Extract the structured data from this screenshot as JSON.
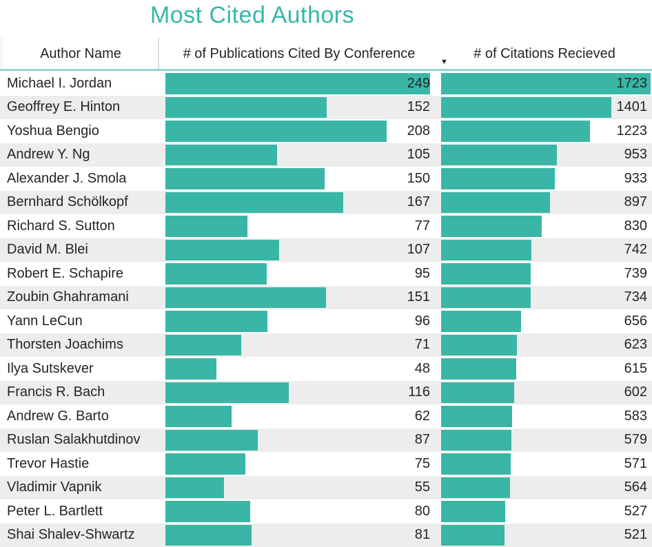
{
  "title": "Most Cited Authors",
  "header": {
    "columns": [
      "Author Name",
      "# of Publications Cited By Conference",
      "# of Citations Recieved"
    ],
    "sort_icon": "▼",
    "sorted_column": "# of Citations Recieved",
    "sort_direction": "descending"
  },
  "colors": {
    "accent": "#3ab6a7",
    "title": "#35b7a8",
    "alt_row": "#ededed",
    "text": "#252423",
    "header_underline": "#93d6ce"
  },
  "chart_data": {
    "type": "table",
    "title": "Most Cited Authors",
    "columns": [
      "Author Name",
      "# of Publications Cited By Conference",
      "# of Citations Recieved"
    ],
    "sort": {
      "column": "# of Citations Recieved",
      "direction": "descending"
    },
    "bar_style": "data-bars",
    "bar_max": {
      "publications": 249,
      "citations": 1723
    },
    "rows": [
      {
        "author": "Michael I. Jordan",
        "publications": 249,
        "citations": 1723
      },
      {
        "author": "Geoffrey E. Hinton",
        "publications": 152,
        "citations": 1401
      },
      {
        "author": "Yoshua Bengio",
        "publications": 208,
        "citations": 1223
      },
      {
        "author": "Andrew Y. Ng",
        "publications": 105,
        "citations": 953
      },
      {
        "author": "Alexander J. Smola",
        "publications": 150,
        "citations": 933
      },
      {
        "author": "Bernhard Schölkopf",
        "publications": 167,
        "citations": 897
      },
      {
        "author": "Richard S. Sutton",
        "publications": 77,
        "citations": 830
      },
      {
        "author": "David M. Blei",
        "publications": 107,
        "citations": 742
      },
      {
        "author": "Robert E. Schapire",
        "publications": 95,
        "citations": 739
      },
      {
        "author": "Zoubin Ghahramani",
        "publications": 151,
        "citations": 734
      },
      {
        "author": "Yann LeCun",
        "publications": 96,
        "citations": 656
      },
      {
        "author": "Thorsten Joachims",
        "publications": 71,
        "citations": 623
      },
      {
        "author": "Ilya Sutskever",
        "publications": 48,
        "citations": 615
      },
      {
        "author": "Francis R. Bach",
        "publications": 116,
        "citations": 602
      },
      {
        "author": "Andrew G. Barto",
        "publications": 62,
        "citations": 583
      },
      {
        "author": "Ruslan Salakhutdinov",
        "publications": 87,
        "citations": 579
      },
      {
        "author": "Trevor Hastie",
        "publications": 75,
        "citations": 571
      },
      {
        "author": "Vladimir Vapnik",
        "publications": 55,
        "citations": 564
      },
      {
        "author": "Peter L. Bartlett",
        "publications": 80,
        "citations": 527
      },
      {
        "author": "Shai Shalev-Shwartz",
        "publications": 81,
        "citations": 521
      }
    ]
  }
}
